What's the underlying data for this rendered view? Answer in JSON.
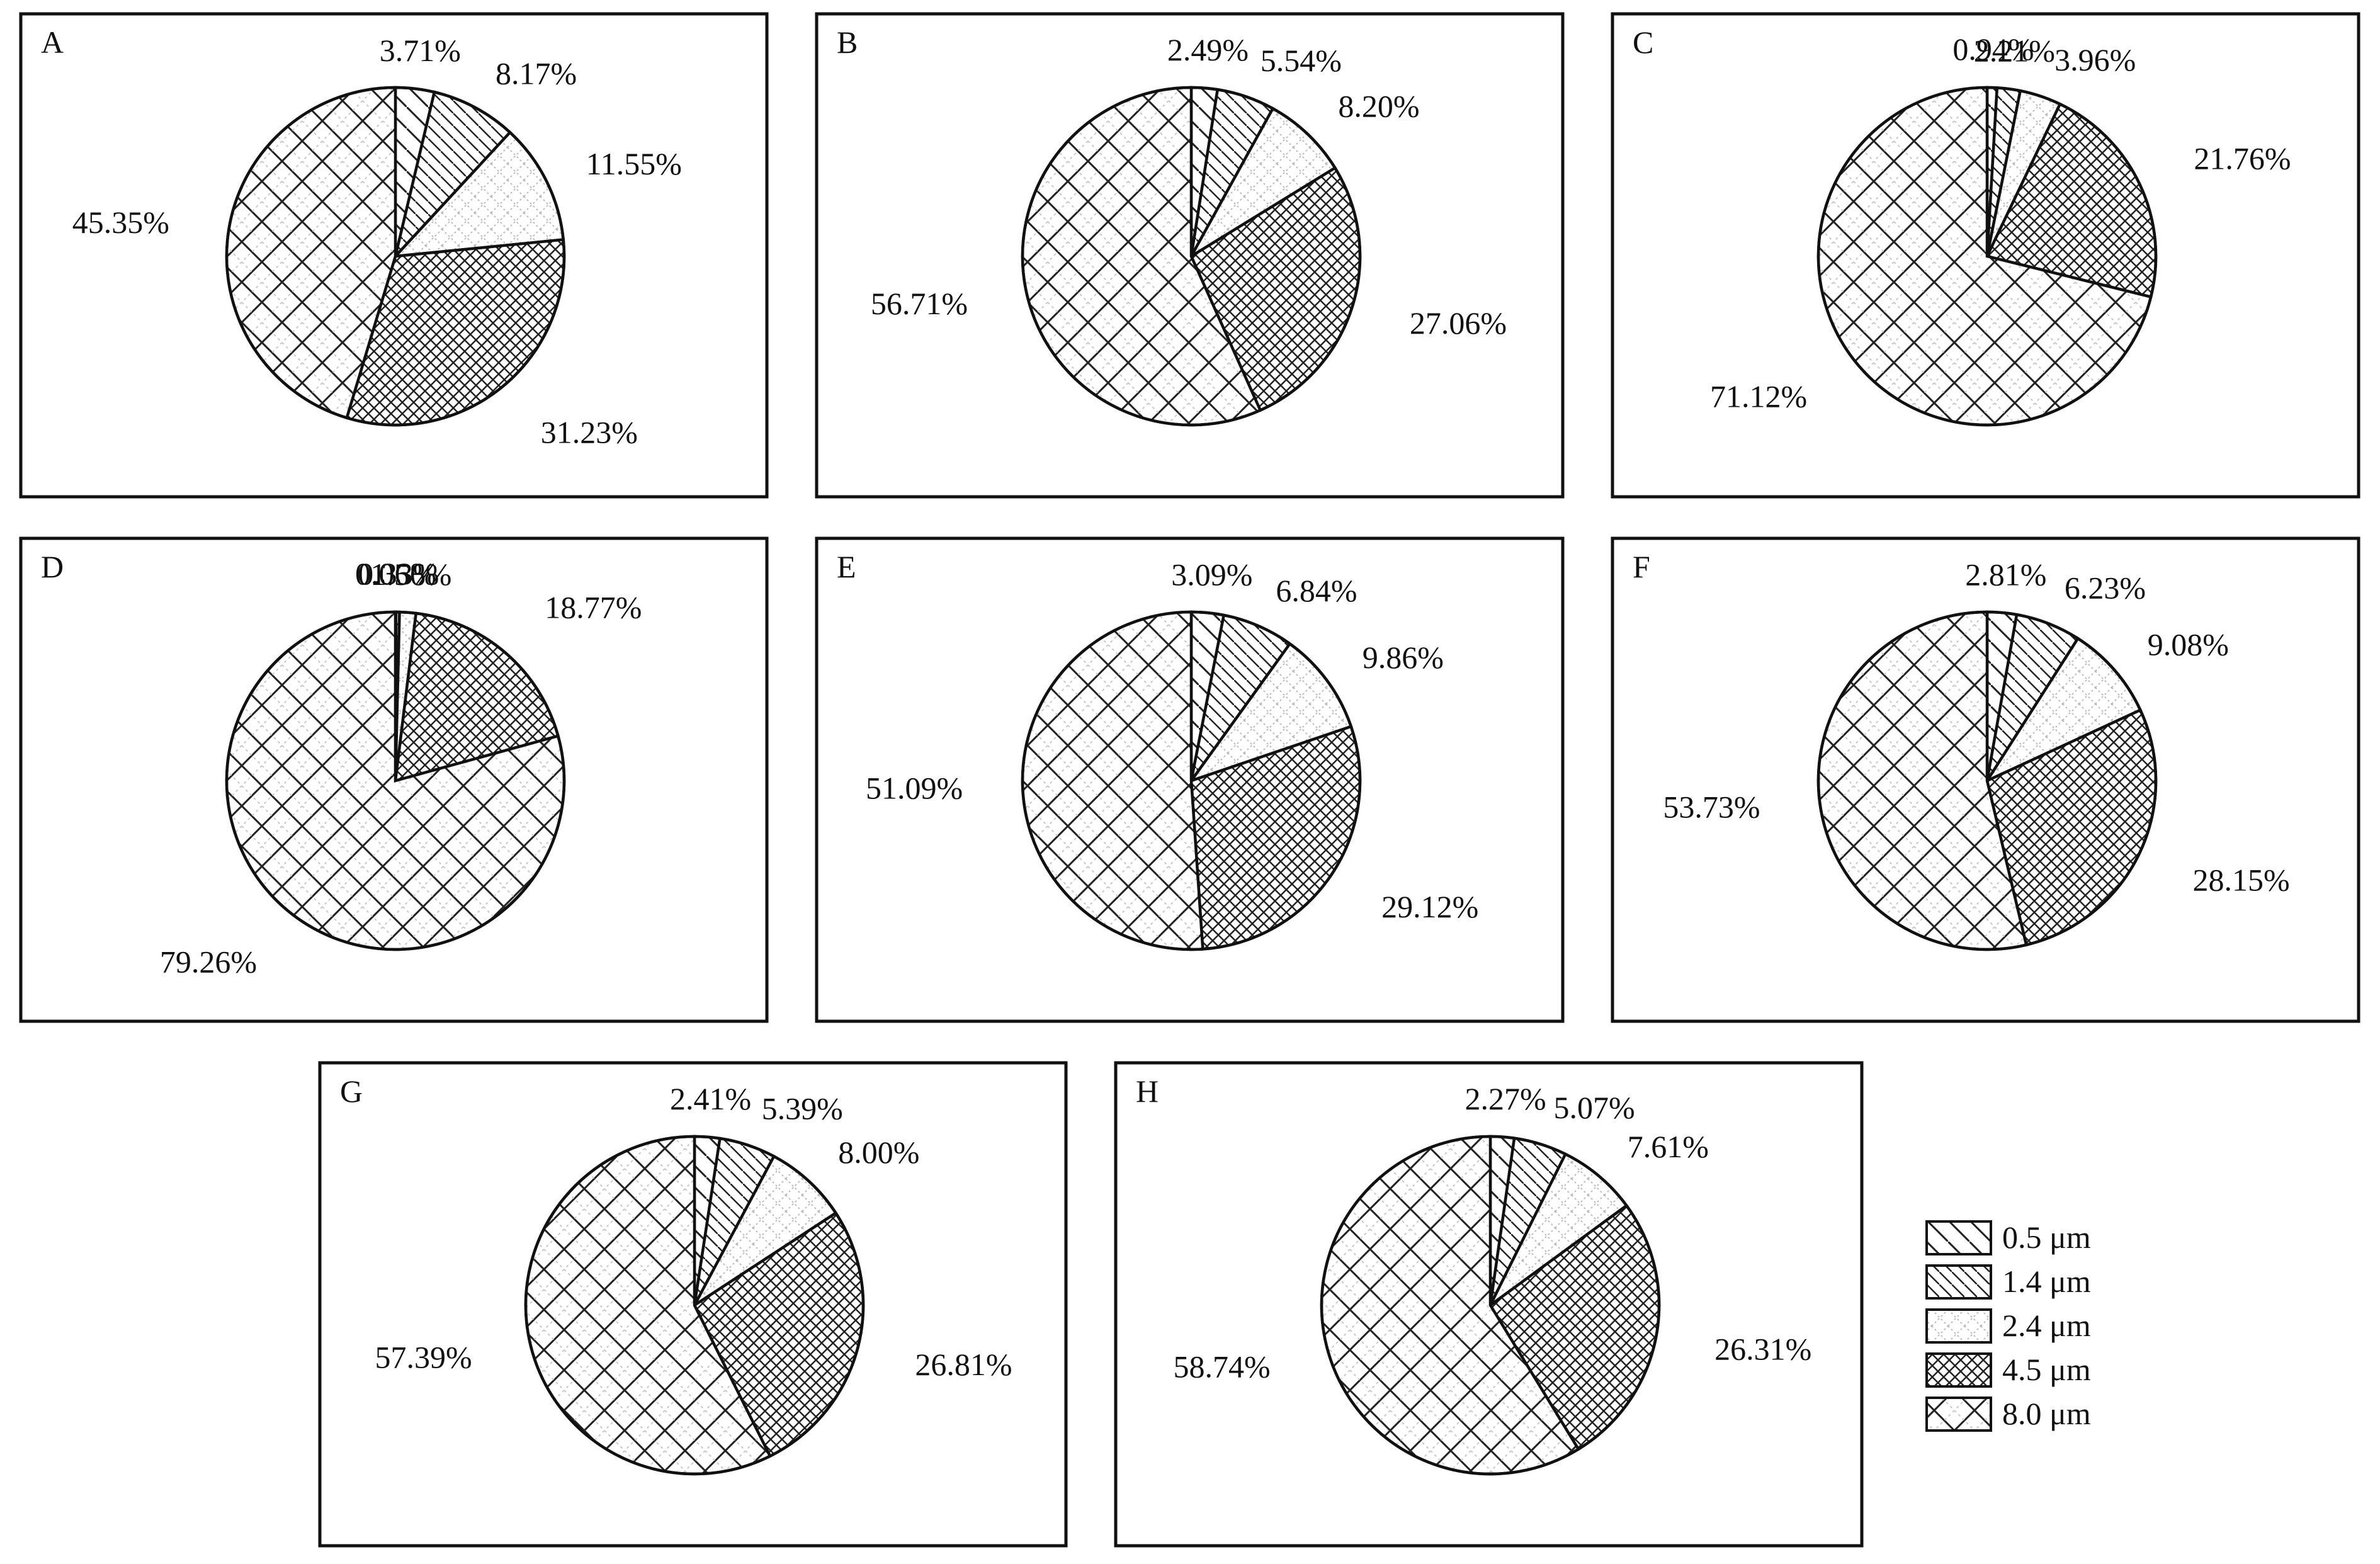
{
  "figure": {
    "legend": {
      "items": [
        {
          "label": "0.5 μm",
          "pattern": "diag-back"
        },
        {
          "label": "1.4 μm",
          "pattern": "diag-back-dense"
        },
        {
          "label": "2.4 μm",
          "pattern": "light-dots"
        },
        {
          "label": "4.5 μm",
          "pattern": "cross-dense"
        },
        {
          "label": "8.0 μm",
          "pattern": "cross-wide"
        }
      ]
    }
  },
  "chart_data": [
    {
      "type": "pie",
      "panel": "A",
      "categories": [
        "0.5 μm",
        "1.4 μm",
        "2.4 μm",
        "4.5 μm",
        "8.0 μm"
      ],
      "values": [
        3.71,
        8.17,
        11.55,
        31.23,
        45.35
      ],
      "labels": [
        "3.71%",
        "8.17%",
        "11.55%",
        "31.23%",
        "45.35%"
      ]
    },
    {
      "type": "pie",
      "panel": "B",
      "categories": [
        "0.5 μm",
        "1.4 μm",
        "2.4 μm",
        "4.5 μm",
        "8.0 μm"
      ],
      "values": [
        2.49,
        5.54,
        8.2,
        27.06,
        56.71
      ],
      "labels": [
        "2.49%",
        "5.54%",
        "8.20%",
        "27.06%",
        "56.71%"
      ]
    },
    {
      "type": "pie",
      "panel": "C",
      "categories": [
        "0.5 μm",
        "1.4 μm",
        "2.4 μm",
        "4.5 μm",
        "8.0 μm"
      ],
      "values": [
        0.94,
        2.21,
        3.96,
        21.76,
        71.12
      ],
      "labels": [
        "0.94%",
        "2.21%",
        "3.96%",
        "21.76%",
        "71.12%"
      ]
    },
    {
      "type": "pie",
      "panel": "D",
      "categories": [
        "0.5 μm",
        "1.4 μm",
        "2.4 μm",
        "4.5 μm",
        "8.0 μm"
      ],
      "values": [
        0.06,
        0.33,
        1.56,
        18.77,
        79.26
      ],
      "labels": [
        "0.06%",
        "0.33%",
        "1.56%",
        "18.77%",
        "79.26%"
      ]
    },
    {
      "type": "pie",
      "panel": "E",
      "categories": [
        "0.5 μm",
        "1.4 μm",
        "2.4 μm",
        "4.5 μm",
        "8.0 μm"
      ],
      "values": [
        3.09,
        6.84,
        9.86,
        29.12,
        51.09
      ],
      "labels": [
        "3.09%",
        "6.84%",
        "9.86%",
        "29.12%",
        "51.09%"
      ]
    },
    {
      "type": "pie",
      "panel": "F",
      "categories": [
        "0.5 μm",
        "1.4 μm",
        "2.4 μm",
        "4.5 μm",
        "8.0 μm"
      ],
      "values": [
        2.81,
        6.23,
        9.08,
        28.15,
        53.73
      ],
      "labels": [
        "2.81%",
        "6.23%",
        "9.08%",
        "28.15%",
        "53.73%"
      ]
    },
    {
      "type": "pie",
      "panel": "G",
      "categories": [
        "0.5 μm",
        "1.4 μm",
        "2.4 μm",
        "4.5 μm",
        "8.0 μm"
      ],
      "values": [
        2.41,
        5.39,
        8.0,
        26.81,
        57.39
      ],
      "labels": [
        "2.41%",
        "5.39%",
        "8.00%",
        "26.81%",
        "57.39%"
      ]
    },
    {
      "type": "pie",
      "panel": "H",
      "categories": [
        "0.5 μm",
        "1.4 μm",
        "2.4 μm",
        "4.5 μm",
        "8.0 μm"
      ],
      "values": [
        2.27,
        5.07,
        7.61,
        26.31,
        58.74
      ],
      "labels": [
        "2.27%",
        "5.07%",
        "7.61%",
        "26.31%",
        "58.74%"
      ]
    }
  ]
}
